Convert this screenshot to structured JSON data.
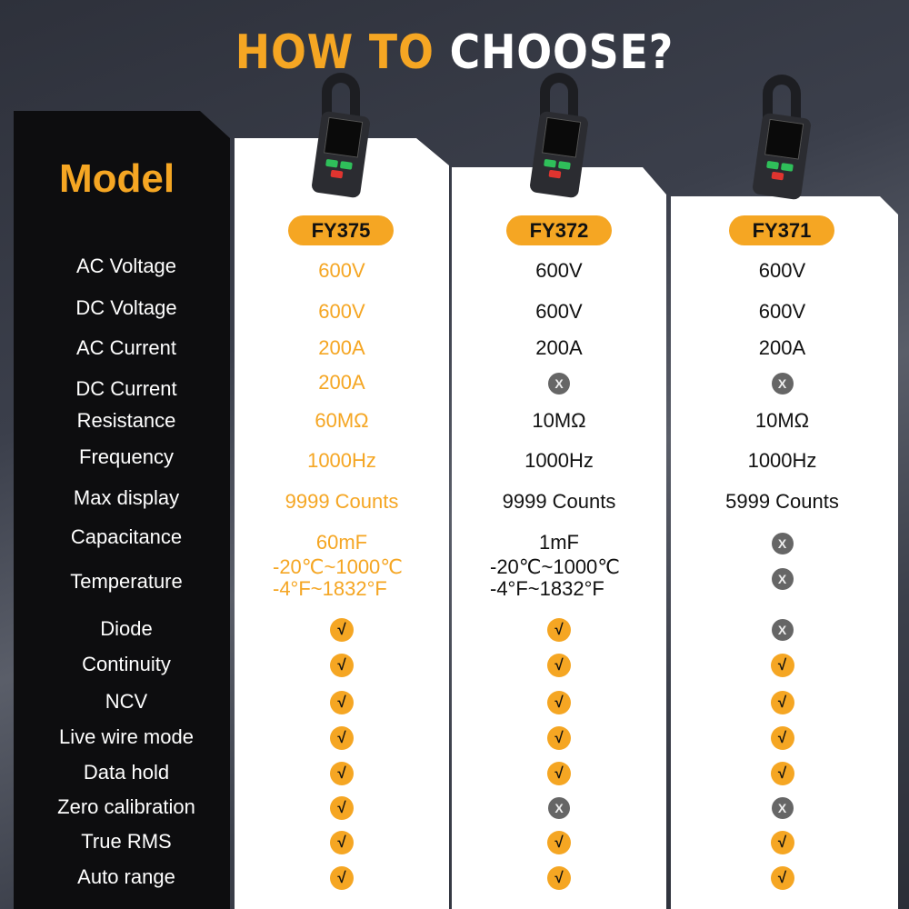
{
  "title": {
    "part1": "HOW TO",
    "part2": "CHOOSE?"
  },
  "model_heading": "Model",
  "models": [
    "FY375",
    "FY372",
    "FY371"
  ],
  "colors": {
    "accent": "#f5a623",
    "cross": "#666666"
  },
  "rows": [
    {
      "label": "AC Voltage",
      "values": [
        "600V",
        "600V",
        "600V"
      ]
    },
    {
      "label": "DC Voltage",
      "values": [
        "600V",
        "600V",
        "600V"
      ]
    },
    {
      "label": "AC Current",
      "values": [
        "200A",
        "200A",
        "200A"
      ]
    },
    {
      "label": "DC Current",
      "values": [
        "200A",
        "x",
        "x"
      ]
    },
    {
      "label": "Resistance",
      "values": [
        "60MΩ",
        "10MΩ",
        "10MΩ"
      ]
    },
    {
      "label": "Frequency",
      "values": [
        "1000Hz",
        "1000Hz",
        "1000Hz"
      ]
    },
    {
      "label": "Max display",
      "values": [
        "9999 Counts",
        "9999 Counts",
        "5999 Counts"
      ]
    },
    {
      "label": "Capacitance",
      "values": [
        "60mF",
        "1mF",
        "x"
      ]
    },
    {
      "label": "Temperature",
      "values": [
        "-20℃~1000℃\n-4°F~1832°F",
        "-20℃~1000℃\n-4°F~1832°F",
        "x"
      ]
    },
    {
      "label": "Diode",
      "values": [
        "check",
        "check",
        "x"
      ]
    },
    {
      "label": "Continuity",
      "values": [
        "check",
        "check",
        "check"
      ]
    },
    {
      "label": "NCV",
      "values": [
        "check",
        "check",
        "check"
      ]
    },
    {
      "label": "Live wire mode",
      "values": [
        "check",
        "check",
        "check"
      ]
    },
    {
      "label": "Data hold",
      "values": [
        "check",
        "check",
        "check"
      ]
    },
    {
      "label": "Zero calibration",
      "values": [
        "check",
        "x",
        "x"
      ]
    },
    {
      "label": "True RMS",
      "values": [
        "check",
        "check",
        "check"
      ]
    },
    {
      "label": "Auto range",
      "values": [
        "check",
        "check",
        "check"
      ]
    }
  ],
  "icons": {
    "check": "√",
    "x": "X"
  }
}
